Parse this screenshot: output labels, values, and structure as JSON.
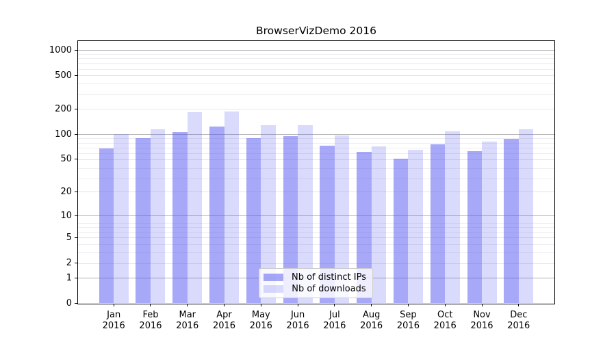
{
  "chart_data": {
    "type": "bar",
    "title": "BrowserVizDemo 2016",
    "categories": [
      "Jan",
      "Feb",
      "Mar",
      "Apr",
      "May",
      "Jun",
      "Jul",
      "Aug",
      "Sep",
      "Oct",
      "Nov",
      "Dec"
    ],
    "category_sub_label": "2016",
    "series": [
      {
        "name": "Nb of distinct IPs",
        "fill": "rgba(82,82,242,0.5)",
        "values": [
          68,
          90,
          107,
          123,
          90,
          94,
          73,
          61,
          51,
          76,
          63,
          88
        ]
      },
      {
        "name": "Nb of downloads",
        "fill": "rgba(82,82,242,0.21)",
        "values": [
          100,
          115,
          182,
          188,
          128,
          129,
          97,
          71,
          65,
          109,
          82,
          115
        ]
      }
    ],
    "xlabel": "",
    "ylabel": "",
    "y_axis": {
      "scale": "log10(value+1)",
      "ticks": [
        1000,
        500,
        200,
        100,
        50,
        20,
        10,
        5,
        2,
        1,
        0
      ],
      "major_grid_values": [
        1,
        10,
        100,
        1000
      ],
      "range": [
        0,
        1280
      ]
    },
    "legend": {
      "position": "inside-bottom-center"
    },
    "grid": true,
    "colors": {
      "major_grid": "#b0b0b0",
      "sub_grid": "#e4e4e9",
      "minor_grid": "#ededf1",
      "spine": "#000000",
      "text": "#000000",
      "background": "#ffffff"
    }
  }
}
